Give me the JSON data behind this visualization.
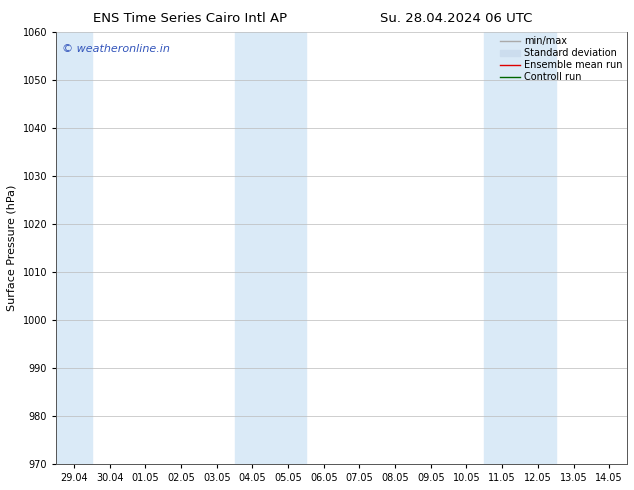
{
  "title_left": "ENS Time Series Cairo Intl AP",
  "title_right": "Su. 28.04.2024 06 UTC",
  "ylabel": "Surface Pressure (hPa)",
  "ylim": [
    970,
    1060
  ],
  "yticks": [
    970,
    980,
    990,
    1000,
    1010,
    1020,
    1030,
    1040,
    1050,
    1060
  ],
  "xtick_labels": [
    "29.04",
    "30.04",
    "01.05",
    "02.05",
    "03.05",
    "04.05",
    "05.05",
    "06.05",
    "07.05",
    "08.05",
    "09.05",
    "10.05",
    "11.05",
    "12.05",
    "13.05",
    "14.05"
  ],
  "xtick_positions": [
    0,
    1,
    2,
    3,
    4,
    5,
    6,
    7,
    8,
    9,
    10,
    11,
    12,
    13,
    14,
    15
  ],
  "xlim_min": -0.5,
  "xlim_max": 15.5,
  "shaded_bands": [
    {
      "xmin": -0.5,
      "xmax": 0.5
    },
    {
      "xmin": 4.5,
      "xmax": 6.5
    },
    {
      "xmin": 11.5,
      "xmax": 13.5
    }
  ],
  "band_color": "#daeaf7",
  "watermark_text": "© weatheronline.in",
  "watermark_color": "#3355bb",
  "legend_items": [
    {
      "label": "min/max",
      "color": "#aaaaaa",
      "lw": 1.0,
      "ls": "-",
      "type": "line"
    },
    {
      "label": "Standard deviation",
      "color": "#ccddee",
      "lw": 5,
      "ls": "-",
      "type": "bar"
    },
    {
      "label": "Ensemble mean run",
      "color": "#dd0000",
      "lw": 1.0,
      "ls": "-",
      "type": "line"
    },
    {
      "label": "Controll run",
      "color": "#006600",
      "lw": 1.0,
      "ls": "-",
      "type": "line"
    }
  ],
  "bg_color": "#ffffff",
  "grid_color": "#bbbbbb",
  "title_fontsize": 9.5,
  "ylabel_fontsize": 8,
  "tick_fontsize": 7,
  "watermark_fontsize": 8,
  "legend_fontsize": 7
}
